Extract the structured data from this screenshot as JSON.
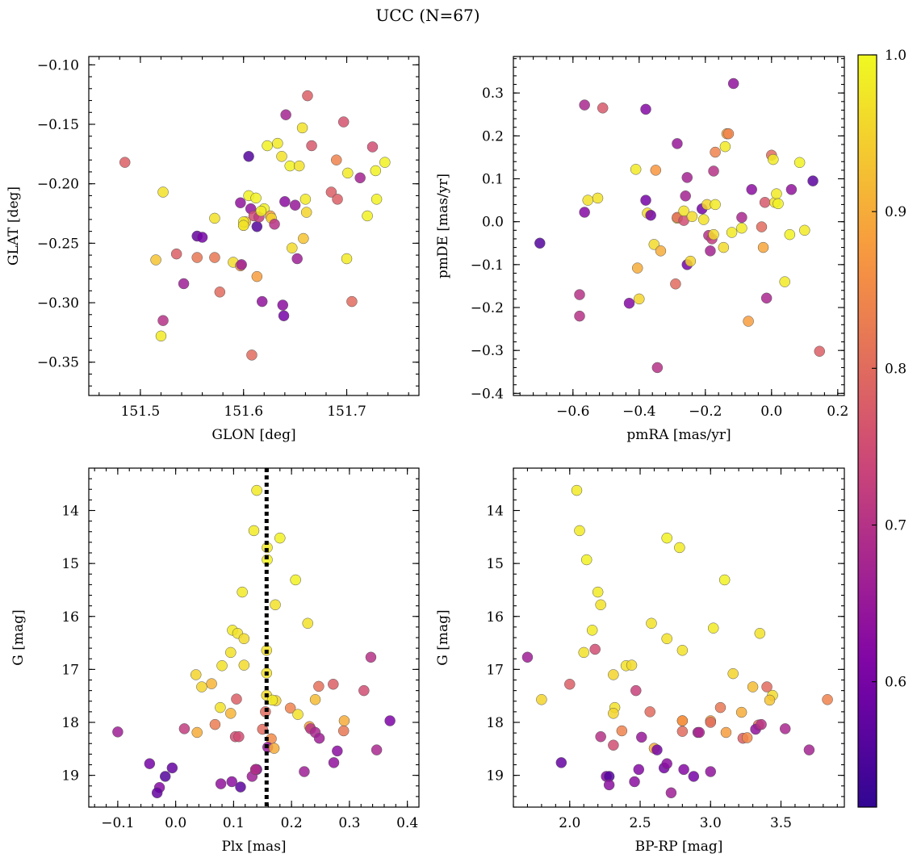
{
  "title": "UCC (N=67)",
  "colorbar": {
    "range": [
      0.52,
      1.0
    ],
    "ticks": [
      0.6,
      0.7,
      0.8,
      0.9,
      1.0
    ],
    "tick_labels": [
      "0.6",
      "0.7",
      "0.8",
      "0.9",
      "1.0"
    ],
    "colormap": "plasma"
  },
  "chart_data": [
    {
      "type": "scatter",
      "name": "glon-glat",
      "xlabel": "GLON [deg]",
      "ylabel": "GLAT [deg]",
      "xlim": [
        151.45,
        151.77
      ],
      "ylim": [
        -0.378,
        -0.093
      ],
      "y_inverted": false,
      "xticks": [
        151.5,
        151.6,
        151.7
      ],
      "xtick_labels": [
        "151.5",
        "151.6",
        "151.7"
      ],
      "yticks": [
        -0.35,
        -0.3,
        -0.25,
        -0.2,
        -0.15,
        -0.1
      ],
      "ytick_labels": [
        "−0.35",
        "−0.30",
        "−0.25",
        "−0.20",
        "−0.15",
        "−0.10"
      ],
      "x": [
        151.485,
        151.522,
        151.515,
        151.542,
        151.535,
        151.555,
        151.56,
        151.572,
        151.572,
        151.577,
        151.59,
        151.597,
        151.597,
        151.6,
        151.602,
        151.605,
        151.607,
        151.608,
        151.61,
        151.612,
        151.613,
        151.615,
        151.618,
        151.62,
        151.623,
        151.626,
        151.627,
        151.63,
        151.633,
        151.637,
        151.638,
        151.639,
        151.641,
        151.645,
        151.647,
        151.65,
        151.652,
        151.654,
        151.657,
        151.658,
        151.66,
        151.661,
        151.662,
        151.666,
        151.685,
        151.69,
        151.691,
        151.697,
        151.7,
        151.701,
        151.705,
        151.713,
        151.72,
        151.725,
        151.728,
        151.729,
        151.737,
        151.522,
        151.52,
        151.605,
        151.598,
        151.613,
        151.555,
        151.64,
        151.6,
        151.617,
        151.6
      ],
      "y": [
        -0.182,
        -0.207,
        -0.264,
        -0.284,
        -0.259,
        -0.244,
        -0.245,
        -0.262,
        -0.229,
        -0.291,
        -0.266,
        -0.216,
        -0.269,
        -0.235,
        -0.232,
        -0.21,
        -0.221,
        -0.344,
        -0.227,
        -0.212,
        -0.236,
        -0.228,
        -0.299,
        -0.221,
        -0.168,
        -0.227,
        -0.229,
        -0.234,
        -0.166,
        -0.177,
        -0.302,
        -0.311,
        -0.142,
        -0.185,
        -0.254,
        -0.218,
        -0.263,
        -0.185,
        -0.153,
        -0.246,
        -0.213,
        -0.224,
        -0.126,
        -0.168,
        -0.207,
        -0.18,
        -0.213,
        -0.148,
        -0.263,
        -0.191,
        -0.299,
        -0.195,
        -0.227,
        -0.169,
        -0.189,
        -0.213,
        -0.182,
        -0.315,
        -0.328,
        -0.177,
        -0.268,
        -0.278,
        -0.262,
        -0.215,
        -0.232,
        -0.223,
        -0.235
      ],
      "c": [
        0.78,
        0.97,
        0.93,
        0.66,
        0.78,
        0.58,
        0.6,
        0.82,
        0.97,
        0.8,
        0.96,
        0.64,
        0.86,
        0.99,
        0.92,
        0.99,
        0.64,
        0.8,
        0.75,
        0.99,
        0.56,
        0.72,
        0.64,
        0.99,
        0.99,
        0.88,
        0.95,
        0.7,
        0.98,
        0.97,
        0.63,
        0.6,
        0.67,
        0.99,
        0.96,
        0.65,
        0.66,
        0.97,
        0.97,
        0.93,
        0.98,
        0.95,
        0.78,
        0.77,
        0.78,
        0.84,
        0.78,
        0.76,
        0.98,
        0.98,
        0.8,
        0.67,
        0.99,
        0.75,
        0.99,
        0.99,
        0.99,
        0.7,
        0.98,
        0.56,
        0.66,
        0.88,
        0.82,
        0.63,
        0.98,
        0.98,
        0.97
      ]
    },
    {
      "type": "scatter",
      "name": "pmra-pmde",
      "xlabel": "pmRA [mas/yr]",
      "ylabel": "pmDE [mas/yr]",
      "xlim": [
        -0.78,
        0.22
      ],
      "ylim": [
        -0.405,
        0.385
      ],
      "y_inverted": false,
      "xticks": [
        -0.6,
        -0.4,
        -0.2,
        0.0,
        0.2
      ],
      "xtick_labels": [
        "−0.6",
        "−0.4",
        "−0.2",
        "0.0",
        "0.2"
      ],
      "yticks": [
        -0.4,
        -0.3,
        -0.2,
        -0.1,
        0.0,
        0.1,
        0.2,
        0.3
      ],
      "ytick_labels": [
        "−0.4",
        "−0.3",
        "−0.2",
        "−0.1",
        "0.0",
        "0.1",
        "0.2",
        "0.3"
      ],
      "x": [
        -0.7,
        -0.58,
        -0.58,
        -0.565,
        -0.565,
        -0.555,
        -0.525,
        -0.51,
        -0.43,
        -0.41,
        -0.405,
        -0.4,
        -0.38,
        -0.38,
        -0.375,
        -0.365,
        -0.355,
        -0.35,
        -0.345,
        -0.335,
        -0.29,
        -0.285,
        -0.285,
        -0.285,
        -0.265,
        -0.265,
        -0.26,
        -0.255,
        -0.255,
        -0.245,
        -0.24,
        -0.21,
        -0.205,
        -0.195,
        -0.19,
        -0.185,
        -0.18,
        -0.175,
        -0.175,
        -0.17,
        -0.17,
        -0.145,
        -0.14,
        -0.135,
        -0.13,
        -0.12,
        -0.115,
        -0.09,
        -0.09,
        -0.07,
        -0.06,
        -0.03,
        -0.025,
        -0.02,
        -0.015,
        0.0,
        0.005,
        0.01,
        0.015,
        0.02,
        0.04,
        0.055,
        0.06,
        0.085,
        0.1,
        0.125,
        0.145
      ],
      "y": [
        -0.05,
        -0.17,
        -0.22,
        0.272,
        0.022,
        0.05,
        0.055,
        0.265,
        -0.19,
        0.122,
        -0.108,
        -0.18,
        0.262,
        0.05,
        0.02,
        0.015,
        -0.053,
        0.12,
        -0.34,
        -0.068,
        -0.145,
        0.008,
        0.182,
        0.01,
        0.003,
        0.025,
        0.06,
        0.103,
        -0.1,
        -0.092,
        0.012,
        0.03,
        0.005,
        0.04,
        -0.032,
        -0.068,
        -0.04,
        0.118,
        -0.03,
        0.04,
        0.162,
        -0.06,
        0.175,
        0.205,
        0.205,
        -0.025,
        0.322,
        -0.015,
        0.01,
        -0.232,
        0.075,
        -0.012,
        -0.06,
        0.045,
        -0.178,
        0.155,
        0.145,
        0.045,
        0.065,
        0.042,
        -0.14,
        -0.03,
        0.075,
        0.138,
        -0.02,
        0.095,
        -0.302
      ],
      "c": [
        0.56,
        0.7,
        0.7,
        0.68,
        0.62,
        0.97,
        0.97,
        0.77,
        0.62,
        0.98,
        0.9,
        0.95,
        0.62,
        0.6,
        0.96,
        0.6,
        0.96,
        0.87,
        0.7,
        0.9,
        0.8,
        0.96,
        0.65,
        0.8,
        0.75,
        0.97,
        0.67,
        0.67,
        0.6,
        0.95,
        0.96,
        0.6,
        0.97,
        0.95,
        0.7,
        0.67,
        0.72,
        0.7,
        0.96,
        0.98,
        0.84,
        0.96,
        0.98,
        0.89,
        0.84,
        0.98,
        0.64,
        0.98,
        0.68,
        0.88,
        0.63,
        0.8,
        0.89,
        0.77,
        0.68,
        0.8,
        0.98,
        0.97,
        0.98,
        0.99,
        0.98,
        0.99,
        0.64,
        0.99,
        0.98,
        0.57,
        0.78
      ]
    },
    {
      "type": "scatter",
      "name": "plx-g",
      "xlabel": "Plx [mas]",
      "ylabel": "G [mag]",
      "xlim": [
        -0.15,
        0.42
      ],
      "ylim": [
        19.6,
        13.2
      ],
      "y_inverted": true,
      "vline_x": 0.157,
      "xticks": [
        -0.1,
        0.0,
        0.1,
        0.2,
        0.3,
        0.4
      ],
      "xtick_labels": [
        "−0.1",
        "0.0",
        "0.1",
        "0.2",
        "0.3",
        "0.4"
      ],
      "yticks": [
        14,
        15,
        16,
        17,
        18,
        19
      ],
      "ytick_labels": [
        "14",
        "15",
        "16",
        "17",
        "18",
        "19"
      ],
      "x": [
        0.14,
        0.135,
        0.18,
        0.158,
        0.158,
        0.207,
        0.115,
        0.172,
        0.098,
        0.107,
        0.228,
        0.118,
        0.095,
        0.08,
        0.118,
        0.157,
        0.035,
        0.062,
        0.045,
        0.157,
        0.105,
        0.173,
        0.077,
        0.095,
        0.157,
        0.167,
        0.15,
        0.198,
        0.211,
        0.103,
        0.231,
        0.247,
        0.291,
        0.068,
        0.109,
        0.155,
        0.015,
        0.037,
        0.233,
        0.241,
        0.241,
        0.272,
        0.325,
        0.37,
        0.29,
        0.248,
        0.165,
        0.138,
        0.159,
        0.14,
        0.17,
        0.347,
        0.279,
        0.222,
        0.273,
        0.132,
        0.138,
        0.078,
        0.097,
        0.112,
        -0.045,
        -0.028,
        -0.018,
        -0.006,
        -0.032,
        -0.1,
        0.337
      ],
      "y": [
        13.62,
        14.38,
        14.52,
        14.7,
        14.93,
        15.31,
        15.54,
        15.78,
        16.26,
        16.32,
        16.13,
        16.42,
        16.68,
        16.93,
        16.92,
        16.64,
        17.1,
        17.27,
        17.33,
        17.07,
        17.56,
        17.59,
        17.72,
        17.83,
        17.49,
        17.58,
        18.13,
        17.73,
        17.85,
        18.27,
        18.08,
        17.32,
        17.97,
        18.04,
        18.27,
        17.8,
        18.12,
        18.19,
        18.12,
        17.57,
        18.19,
        17.28,
        17.4,
        17.97,
        18.16,
        18.3,
        18.31,
        18.89,
        18.47,
        18.89,
        18.49,
        18.52,
        18.54,
        18.93,
        18.76,
        19.02,
        18.89,
        19.16,
        19.12,
        19.22,
        18.78,
        19.23,
        19.02,
        18.86,
        19.33,
        18.18,
        16.77
      ],
      "c": [
        0.98,
        0.98,
        0.99,
        0.98,
        0.99,
        0.99,
        0.98,
        0.97,
        0.98,
        0.97,
        0.97,
        0.96,
        0.97,
        0.97,
        0.96,
        0.97,
        0.95,
        0.91,
        0.95,
        0.97,
        0.78,
        0.95,
        0.97,
        0.91,
        0.96,
        0.98,
        0.8,
        0.84,
        0.97,
        0.75,
        0.88,
        0.81,
        0.9,
        0.83,
        0.75,
        0.8,
        0.72,
        0.9,
        0.7,
        0.92,
        0.68,
        0.78,
        0.75,
        0.61,
        0.82,
        0.66,
        0.85,
        0.63,
        0.65,
        0.6,
        0.9,
        0.68,
        0.63,
        0.66,
        0.64,
        0.66,
        0.7,
        0.64,
        0.63,
        0.57,
        0.6,
        0.62,
        0.56,
        0.58,
        0.58,
        0.66,
        0.7
      ]
    },
    {
      "type": "scatter",
      "name": "bprp-g",
      "xlabel": "BP-RP [mag]",
      "ylabel": "G [mag]",
      "xlim": [
        1.6,
        3.95
      ],
      "ylim": [
        19.6,
        13.2
      ],
      "y_inverted": true,
      "xticks": [
        2.0,
        2.5,
        3.0,
        3.5
      ],
      "xtick_labels": [
        "2.0",
        "2.5",
        "3.0",
        "3.5"
      ],
      "yticks": [
        14,
        15,
        16,
        17,
        18,
        19
      ],
      "ytick_labels": [
        "14",
        "15",
        "16",
        "17",
        "18",
        "19"
      ],
      "x": [
        2.05,
        2.07,
        2.12,
        2.2,
        2.22,
        2.16,
        2.1,
        2.31,
        2.4,
        2.44,
        2.58,
        2.69,
        2.69,
        2.78,
        2.8,
        3.1,
        3.02,
        3.16,
        3.35,
        3.44,
        1.7,
        1.8,
        2.0,
        2.18,
        2.32,
        2.31,
        2.47,
        2.57,
        2.37,
        2.8,
        2.91,
        3.0,
        3.07,
        3.11,
        3.3,
        3.22,
        3.23,
        3.34,
        3.42,
        3.53,
        3.83,
        2.31,
        2.22,
        2.51,
        2.6,
        2.8,
        2.92,
        3.0,
        3.26,
        3.32,
        3.36,
        2.62,
        2.67,
        2.49,
        2.26,
        2.28,
        2.72,
        2.69,
        2.81,
        2.88,
        3.0,
        2.46,
        2.28,
        1.94,
        3.4,
        3.7,
        2.8
      ],
      "y": [
        13.62,
        14.38,
        14.93,
        15.54,
        15.78,
        16.26,
        16.68,
        17.1,
        16.93,
        16.92,
        16.13,
        16.42,
        14.52,
        14.7,
        16.64,
        15.31,
        16.22,
        17.08,
        16.32,
        17.49,
        16.77,
        17.57,
        17.28,
        16.62,
        17.72,
        17.83,
        17.4,
        17.8,
        18.16,
        17.97,
        18.19,
        17.97,
        17.72,
        18.19,
        17.33,
        17.81,
        18.3,
        18.05,
        17.58,
        18.12,
        17.57,
        18.43,
        18.27,
        18.28,
        18.49,
        18.17,
        18.19,
        18.0,
        18.29,
        18.13,
        18.04,
        18.52,
        18.86,
        18.89,
        19.02,
        19.02,
        19.33,
        18.78,
        18.89,
        19.02,
        18.93,
        19.12,
        19.18,
        18.76,
        17.33,
        18.52,
        17.97
      ],
      "c": [
        0.98,
        0.98,
        0.99,
        0.98,
        0.97,
        0.98,
        0.97,
        0.95,
        0.97,
        0.96,
        0.97,
        0.97,
        0.99,
        0.98,
        0.97,
        0.99,
        0.98,
        0.95,
        0.97,
        0.96,
        0.66,
        0.95,
        0.78,
        0.75,
        0.97,
        0.95,
        0.73,
        0.8,
        0.84,
        0.82,
        0.66,
        0.88,
        0.82,
        0.88,
        0.92,
        0.9,
        0.78,
        0.8,
        0.93,
        0.68,
        0.84,
        0.75,
        0.7,
        0.65,
        0.9,
        0.8,
        0.68,
        0.8,
        0.85,
        0.64,
        0.7,
        0.6,
        0.6,
        0.62,
        0.62,
        0.56,
        0.66,
        0.63,
        0.62,
        0.6,
        0.64,
        0.63,
        0.63,
        0.58,
        0.8,
        0.67,
        0.87
      ]
    }
  ]
}
